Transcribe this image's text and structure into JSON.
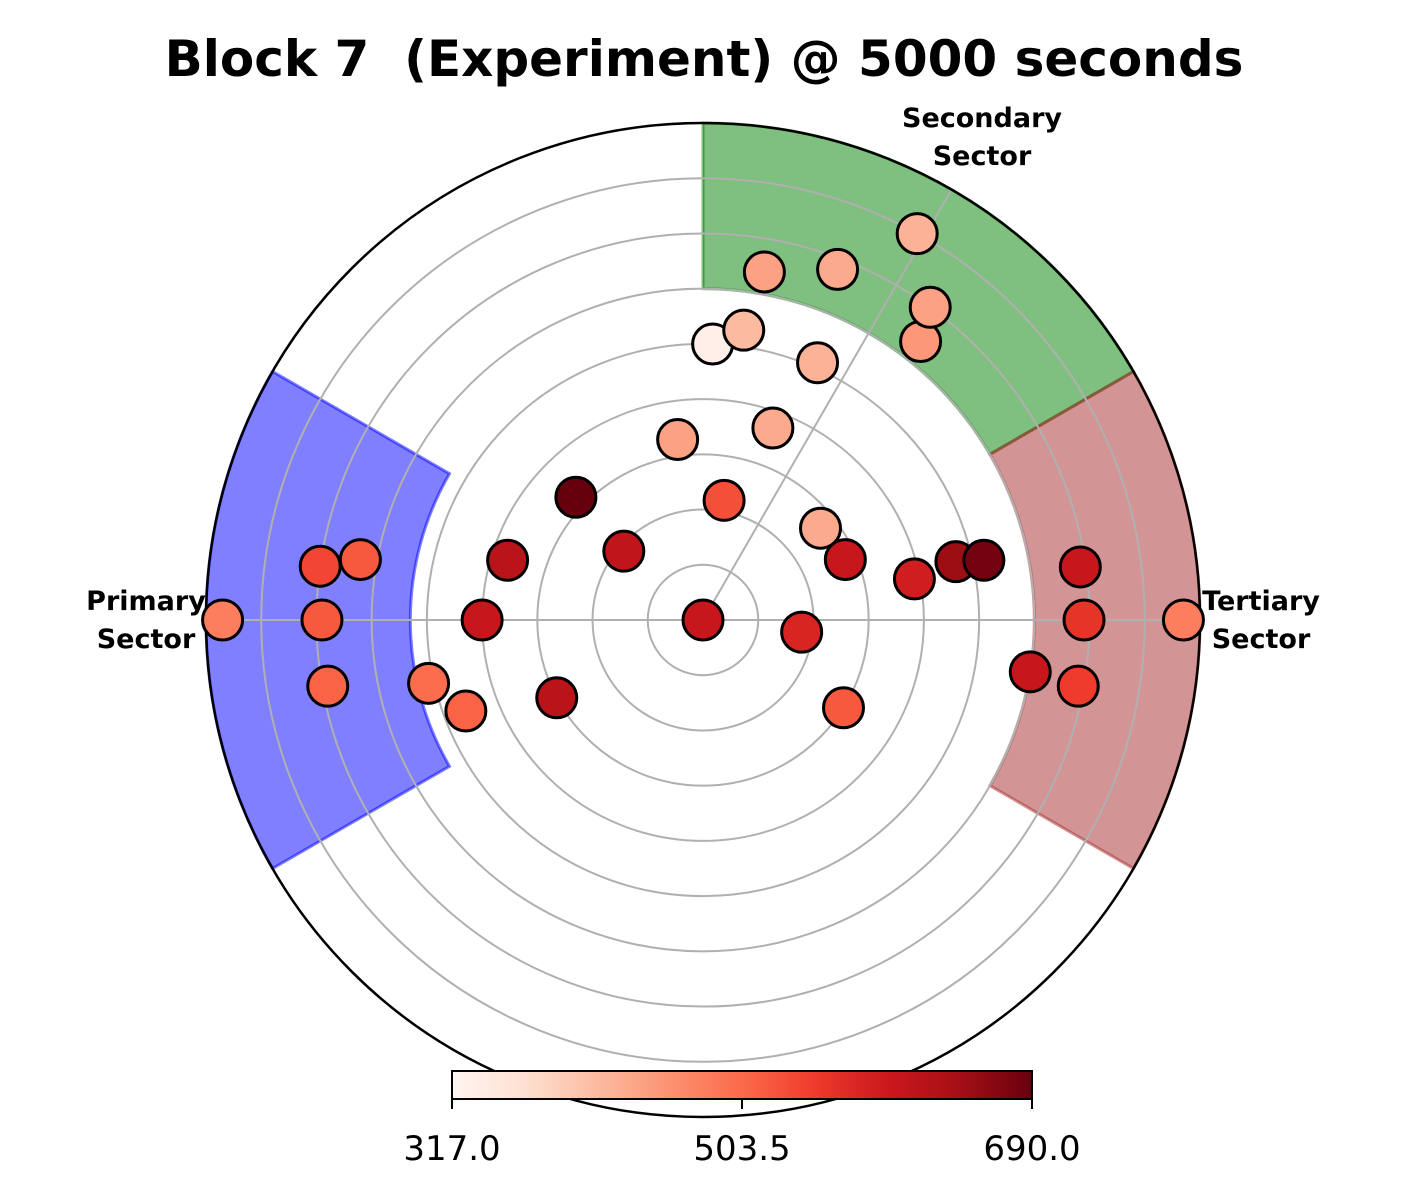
{
  "chart_data": {
    "type": "scatter",
    "projection": "polar",
    "title": "Block 7  (Experiment) @ 5000 seconds",
    "r_max": 9.0,
    "rings": [
      1,
      2,
      3,
      4,
      5,
      6,
      7,
      8
    ],
    "grid": true,
    "sectors": [
      {
        "label": "Primary\nSector",
        "color": "#0000ff",
        "theta_center_deg": 180,
        "theta_span_deg": 60,
        "r_inner": 5.3,
        "r_outer": 9.0
      },
      {
        "label": "Secondary\nSector",
        "color": "#008000",
        "theta_center_deg": 60,
        "theta_span_deg": 60,
        "r_inner": 6.0,
        "r_outer": 9.0
      },
      {
        "label": "Tertiary\nSector",
        "color": "#a52a2a",
        "theta_center_deg": 0,
        "theta_span_deg": 60,
        "r_inner": 6.0,
        "r_outer": 9.0
      }
    ],
    "colorbar": {
      "colormap": "Reds",
      "min": 317.0,
      "max": 690.0,
      "ticks": [
        "317.0",
        "503.5",
        "690.0"
      ],
      "tick_values": [
        317.0,
        503.5,
        690.0
      ]
    },
    "points": [
      {
        "r": 0.0,
        "theta_deg": 0,
        "value": 600
      },
      {
        "r": 1.8,
        "theta_deg": -7,
        "value": 580
      },
      {
        "r": 3.0,
        "theta_deg": -32,
        "value": 520
      },
      {
        "r": 2.8,
        "theta_deg": 23,
        "value": 600
      },
      {
        "r": 1.9,
        "theta_deg": 139,
        "value": 610
      },
      {
        "r": 2.2,
        "theta_deg": 80,
        "value": 530
      },
      {
        "r": 2.7,
        "theta_deg": 38,
        "value": 430
      },
      {
        "r": 3.9,
        "theta_deg": 11,
        "value": 590
      },
      {
        "r": 4.7,
        "theta_deg": 13,
        "value": 650
      },
      {
        "r": 5.2,
        "theta_deg": 12,
        "value": 680
      },
      {
        "r": 3.7,
        "theta_deg": 70,
        "value": 430
      },
      {
        "r": 3.3,
        "theta_deg": 98,
        "value": 440
      },
      {
        "r": 5.1,
        "theta_deg": 66,
        "value": 420
      },
      {
        "r": 5.0,
        "theta_deg": 88,
        "value": 330
      },
      {
        "r": 5.3,
        "theta_deg": 82,
        "value": 410
      },
      {
        "r": 6.4,
        "theta_deg": 80,
        "value": 440
      },
      {
        "r": 6.8,
        "theta_deg": 69,
        "value": 430
      },
      {
        "r": 6.4,
        "theta_deg": 52,
        "value": 450
      },
      {
        "r": 7.0,
        "theta_deg": 54,
        "value": 440
      },
      {
        "r": 8.0,
        "theta_deg": 61,
        "value": 420
      },
      {
        "r": 6.9,
        "theta_deg": 8,
        "value": 600
      },
      {
        "r": 6.9,
        "theta_deg": 0,
        "value": 560
      },
      {
        "r": 6.0,
        "theta_deg": -9,
        "value": 600
      },
      {
        "r": 6.9,
        "theta_deg": -10,
        "value": 550
      },
      {
        "r": 8.7,
        "theta_deg": 0,
        "value": 480
      },
      {
        "r": 3.2,
        "theta_deg": 136,
        "value": 690
      },
      {
        "r": 4.0,
        "theta_deg": 180,
        "value": 600
      },
      {
        "r": 3.7,
        "theta_deg": 163,
        "value": 620
      },
      {
        "r": 3.0,
        "theta_deg": -152,
        "value": 620
      },
      {
        "r": 5.1,
        "theta_deg": -167,
        "value": 500
      },
      {
        "r": 4.6,
        "theta_deg": -159,
        "value": 510
      },
      {
        "r": 7.0,
        "theta_deg": 172,
        "value": 540
      },
      {
        "r": 6.3,
        "theta_deg": 170,
        "value": 520
      },
      {
        "r": 6.9,
        "theta_deg": 180,
        "value": 520
      },
      {
        "r": 6.9,
        "theta_deg": -170,
        "value": 510
      },
      {
        "r": 8.7,
        "theta_deg": 180,
        "value": 480
      }
    ]
  }
}
